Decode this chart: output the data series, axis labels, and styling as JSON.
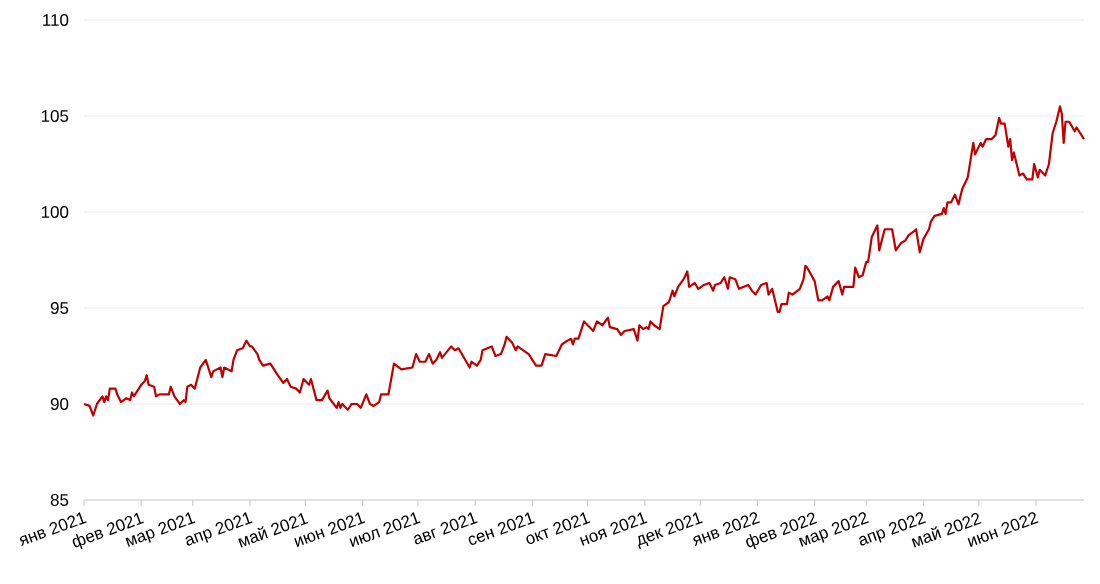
{
  "chart_data": {
    "type": "line",
    "grid": "y",
    "color": "#c00000",
    "xlim": [
      "2021-01-01",
      "2022-06-27"
    ],
    "ylim": [
      85,
      110
    ],
    "yticks": [
      85,
      90,
      95,
      100,
      105,
      110
    ],
    "xticks": [
      {
        "value": "2021-01",
        "label": "янв 2021"
      },
      {
        "value": "2021-02",
        "label": "фев 2021"
      },
      {
        "value": "2021-03",
        "label": "мар 2021"
      },
      {
        "value": "2021-04",
        "label": "апр 2021"
      },
      {
        "value": "2021-05",
        "label": "май 2021"
      },
      {
        "value": "2021-06",
        "label": "июн 2021"
      },
      {
        "value": "2021-07",
        "label": "июл 2021"
      },
      {
        "value": "2021-08",
        "label": "авг 2021"
      },
      {
        "value": "2021-09",
        "label": "сен 2021"
      },
      {
        "value": "2021-10",
        "label": "окт 2021"
      },
      {
        "value": "2021-11",
        "label": "ноя 2021"
      },
      {
        "value": "2021-12",
        "label": "дек 2021"
      },
      {
        "value": "2022-01",
        "label": "янв 2022"
      },
      {
        "value": "2022-02",
        "label": "фев 2022"
      },
      {
        "value": "2022-03",
        "label": "мар 2022"
      },
      {
        "value": "2022-04",
        "label": "апр 2022"
      },
      {
        "value": "2022-05",
        "label": "май 2022"
      },
      {
        "value": "2022-06",
        "label": "июн 2022"
      }
    ],
    "x": [
      "2021-01-01",
      "2021-01-04",
      "2021-01-06",
      "2021-01-08",
      "2021-01-11",
      "2021-01-12",
      "2021-01-13",
      "2021-01-14",
      "2021-01-15",
      "2021-01-18",
      "2021-01-19",
      "2021-01-21",
      "2021-01-24",
      "2021-01-26",
      "2021-01-27",
      "2021-01-28",
      "2021-02-01",
      "2021-02-03",
      "2021-02-04",
      "2021-02-05",
      "2021-02-08",
      "2021-02-09",
      "2021-02-11",
      "2021-02-16",
      "2021-02-17",
      "2021-02-19",
      "2021-02-22",
      "2021-02-24",
      "2021-02-25",
      "2021-02-26",
      "2021-02-28",
      "2021-03-02",
      "2021-03-05",
      "2021-03-08",
      "2021-03-09",
      "2021-03-11",
      "2021-03-12",
      "2021-03-16",
      "2021-03-17",
      "2021-03-18",
      "2021-03-22",
      "2021-03-23",
      "2021-03-25",
      "2021-03-28",
      "2021-03-30",
      "2021-04-01",
      "2021-04-02",
      "2021-04-05",
      "2021-04-06",
      "2021-04-08",
      "2021-04-12",
      "2021-04-14",
      "2021-04-16",
      "2021-04-19",
      "2021-04-21",
      "2021-04-23",
      "2021-04-26",
      "2021-04-28",
      "2021-04-30",
      "2021-05-03",
      "2021-05-04",
      "2021-05-07",
      "2021-05-10",
      "2021-05-13",
      "2021-05-14",
      "2021-05-18",
      "2021-05-19",
      "2021-05-20",
      "2021-05-21",
      "2021-05-24",
      "2021-05-26",
      "2021-05-29",
      "2021-05-31",
      "2021-06-03",
      "2021-06-05",
      "2021-06-07",
      "2021-06-10",
      "2021-06-11",
      "2021-06-15",
      "2021-06-18",
      "2021-06-22",
      "2021-06-28",
      "2021-06-30",
      "2021-07-02",
      "2021-07-05",
      "2021-07-07",
      "2021-07-09",
      "2021-07-11",
      "2021-07-13",
      "2021-07-14",
      "2021-07-19",
      "2021-07-21",
      "2021-07-23",
      "2021-07-26",
      "2021-07-29",
      "2021-07-30",
      "2021-08-02",
      "2021-08-04",
      "2021-08-05",
      "2021-08-10",
      "2021-08-12",
      "2021-08-15",
      "2021-08-17",
      "2021-08-18",
      "2021-08-21",
      "2021-08-23",
      "2021-08-24",
      "2021-08-30",
      "2021-09-03",
      "2021-09-06",
      "2021-09-08",
      "2021-09-14",
      "2021-09-17",
      "2021-09-20",
      "2021-09-22",
      "2021-09-23",
      "2021-09-24",
      "2021-09-26",
      "2021-09-29",
      "2021-10-03",
      "2021-10-04",
      "2021-10-06",
      "2021-10-09",
      "2021-10-12",
      "2021-10-13",
      "2021-10-17",
      "2021-10-19",
      "2021-10-21",
      "2021-10-26",
      "2021-10-28",
      "2021-10-29",
      "2021-10-31",
      "2021-11-02",
      "2021-11-03",
      "2021-11-04",
      "2021-11-06",
      "2021-11-09",
      "2021-11-11",
      "2021-11-14",
      "2021-11-16",
      "2021-11-17",
      "2021-11-19",
      "2021-11-22",
      "2021-11-24",
      "2021-11-25",
      "2021-11-28",
      "2021-11-30",
      "2021-12-03",
      "2021-12-06",
      "2021-12-08",
      "2021-12-09",
      "2021-12-12",
      "2021-12-14",
      "2021-12-16",
      "2021-12-17",
      "2021-12-20",
      "2021-12-22",
      "2021-12-27",
      "2021-12-29",
      "2021-12-31",
      "2022-01-03",
      "2022-01-06",
      "2022-01-07",
      "2022-01-09",
      "2022-01-12",
      "2022-01-13",
      "2022-01-14",
      "2022-01-17",
      "2022-01-18",
      "2022-01-20",
      "2022-01-24",
      "2022-01-26",
      "2022-01-27",
      "2022-01-28",
      "2022-02-01",
      "2022-02-03",
      "2022-02-05",
      "2022-02-08",
      "2022-02-09",
      "2022-02-11",
      "2022-02-14",
      "2022-02-16",
      "2022-02-17",
      "2022-02-22",
      "2022-02-23",
      "2022-02-25",
      "2022-02-27",
      "2022-03-01",
      "2022-03-02",
      "2022-03-04",
      "2022-03-07",
      "2022-03-08",
      "2022-03-11",
      "2022-03-15",
      "2022-03-17",
      "2022-03-20",
      "2022-03-22",
      "2022-03-24",
      "2022-03-27",
      "2022-03-28",
      "2022-03-30",
      "2022-04-01",
      "2022-04-04",
      "2022-04-05",
      "2022-04-07",
      "2022-04-11",
      "2022-04-12",
      "2022-04-13",
      "2022-04-14",
      "2022-04-16",
      "2022-04-18",
      "2022-04-20",
      "2022-04-22",
      "2022-04-25",
      "2022-04-28",
      "2022-04-29",
      "2022-05-02",
      "2022-05-03",
      "2022-05-05",
      "2022-05-08",
      "2022-05-10",
      "2022-05-12",
      "2022-05-13",
      "2022-05-15",
      "2022-05-16",
      "2022-05-17",
      "2022-05-18",
      "2022-05-19",
      "2022-05-20",
      "2022-05-23",
      "2022-05-25",
      "2022-05-27",
      "2022-05-30",
      "2022-05-31",
      "2022-06-02",
      "2022-06-03",
      "2022-06-06",
      "2022-06-08",
      "2022-06-10",
      "2022-06-12",
      "2022-06-14",
      "2022-06-15",
      "2022-06-16",
      "2022-06-17",
      "2022-06-19",
      "2022-06-22",
      "2022-06-23",
      "2022-06-25",
      "2022-06-27"
    ],
    "values": [
      90.0,
      89.9,
      89.4,
      90.0,
      90.4,
      90.1,
      90.4,
      90.2,
      90.8,
      90.8,
      90.5,
      90.1,
      90.3,
      90.2,
      90.6,
      90.4,
      91.0,
      91.2,
      91.5,
      91.0,
      90.9,
      90.4,
      90.5,
      90.5,
      90.9,
      90.4,
      90.0,
      90.2,
      90.1,
      90.9,
      91.0,
      90.8,
      91.9,
      92.3,
      92.0,
      91.4,
      91.7,
      91.9,
      91.4,
      91.9,
      91.7,
      92.3,
      92.8,
      92.9,
      93.3,
      93.0,
      93.0,
      92.6,
      92.3,
      92.0,
      92.1,
      91.8,
      91.5,
      91.1,
      91.3,
      90.9,
      90.8,
      90.6,
      91.3,
      91.0,
      91.3,
      90.2,
      90.2,
      90.7,
      90.3,
      89.8,
      90.1,
      89.8,
      90.0,
      89.7,
      90.0,
      90.0,
      89.8,
      90.5,
      90.0,
      89.9,
      90.1,
      90.5,
      90.5,
      92.1,
      91.8,
      91.9,
      92.6,
      92.2,
      92.2,
      92.6,
      92.1,
      92.3,
      92.7,
      92.4,
      93.0,
      92.8,
      92.9,
      92.4,
      91.9,
      92.2,
      92.0,
      92.3,
      92.8,
      93.0,
      92.5,
      92.6,
      93.1,
      93.5,
      93.2,
      92.8,
      93.0,
      92.6,
      92.0,
      92.0,
      92.6,
      92.5,
      93.1,
      93.3,
      93.4,
      93.1,
      93.4,
      93.4,
      94.3,
      93.9,
      93.8,
      94.3,
      94.1,
      94.5,
      94.0,
      93.9,
      93.6,
      93.8,
      93.9,
      93.3,
      94.1,
      93.9,
      94.0,
      93.9,
      94.3,
      94.1,
      93.9,
      95.1,
      95.3,
      95.9,
      95.6,
      96.1,
      96.5,
      96.9,
      96.1,
      96.3,
      96.0,
      96.2,
      96.3,
      95.9,
      96.2,
      96.3,
      96.6,
      96.0,
      96.6,
      96.5,
      96.0,
      96.2,
      95.9,
      95.7,
      96.2,
      96.3,
      95.7,
      96.0,
      94.8,
      94.8,
      95.2,
      95.2,
      95.8,
      95.7,
      96.0,
      96.5,
      97.2,
      97.1,
      96.4,
      95.4,
      95.4,
      95.6,
      95.4,
      96.1,
      96.4,
      95.7,
      96.1,
      96.1,
      97.1,
      96.6,
      96.7,
      97.4,
      97.4,
      98.7,
      99.3,
      98.0,
      99.1,
      99.1,
      98.0,
      98.4,
      98.5,
      98.8,
      99.0,
      99.1,
      97.9,
      98.6,
      99.1,
      99.5,
      99.8,
      99.9,
      100.2,
      99.9,
      100.5,
      100.5,
      100.9,
      100.4,
      101.2,
      101.8,
      103.6,
      103.0,
      103.6,
      103.4,
      103.8,
      103.8,
      104.0,
      104.9,
      104.6,
      104.6,
      104.0,
      103.4,
      103.8,
      102.7,
      103.1,
      101.9,
      102.0,
      101.7,
      101.7,
      102.5,
      101.8,
      102.2,
      101.9,
      102.5,
      104.1,
      104.7,
      105.5,
      105.1,
      103.6,
      104.7,
      104.7,
      104.2,
      104.4,
      104.1,
      103.8
    ]
  }
}
